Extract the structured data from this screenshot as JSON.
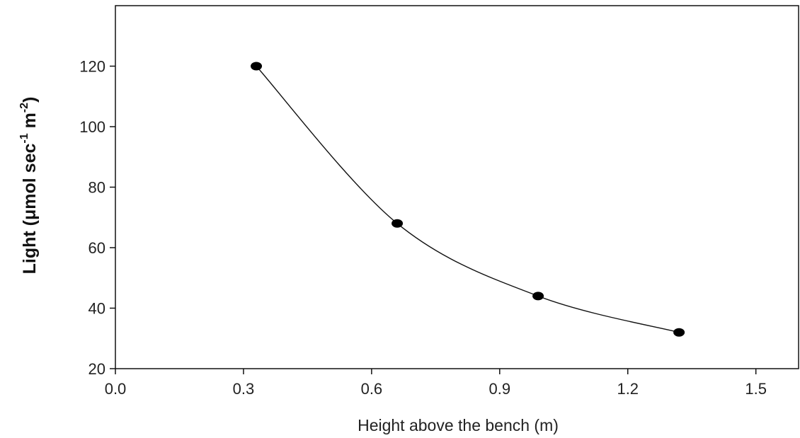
{
  "chart_data": {
    "type": "line",
    "title": "",
    "xlabel": "Height above the bench (m)",
    "ylabel": {
      "main": "Light (",
      "mu": "μ",
      "unit_part1": "mol sec",
      "exp1": "-1",
      "unit_part2": " m",
      "exp2": "-2",
      "close": ")"
    },
    "xlim": [
      0,
      1.6
    ],
    "ylim": [
      20,
      140
    ],
    "xticks": [
      0,
      0.3,
      0.6,
      0.9,
      1.2,
      1.5
    ],
    "xtick_labels": [
      "0.0",
      "0.3",
      "0.6",
      "0.9",
      "1.2",
      "1.5"
    ],
    "yticks": [
      20,
      40,
      60,
      80,
      100,
      120
    ],
    "ytick_labels": [
      "20",
      "40",
      "60",
      "80",
      "100",
      "120"
    ],
    "grid": false,
    "legend": "none",
    "line_color": "#111111",
    "marker_color": "#000000",
    "series": [
      {
        "x": [
          0.33,
          0.66,
          0.99,
          1.32
        ],
        "y": [
          120,
          68,
          44,
          32
        ]
      }
    ]
  }
}
